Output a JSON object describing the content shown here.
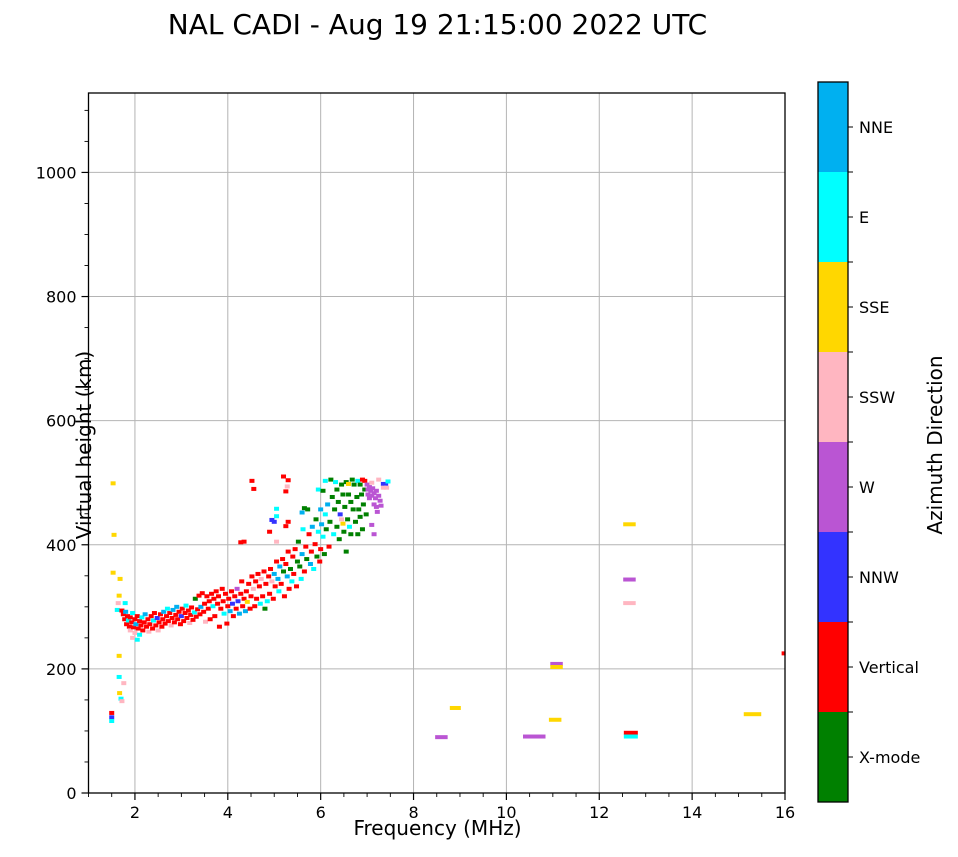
{
  "title": "NAL CADI - Aug 19 21:15:00 2022 UTC",
  "chart_data": {
    "type": "scatter",
    "title": "NAL CADI - Aug 19 21:15:00 2022 UTC",
    "xlabel": "Frequency (MHz)",
    "ylabel": "Virtual height (km)",
    "xlim": [
      1,
      16
    ],
    "ylim": [
      0,
      1128
    ],
    "x_major_ticks": [
      2,
      4,
      6,
      8,
      10,
      12,
      14,
      16
    ],
    "x_minor_step": 0.5,
    "y_major_ticks": [
      0,
      200,
      400,
      600,
      800,
      1000
    ],
    "y_minor_step": 50,
    "grid": true,
    "grid_color": "#b4b4b4",
    "axis_color": "#000000",
    "legend": {
      "title": "Azimuth Direction",
      "style": "colorbar-right",
      "categories": [
        {
          "label": "NNE",
          "color": "#00B0F0"
        },
        {
          "label": "E",
          "color": "#00FFFF"
        },
        {
          "label": "SSE",
          "color": "#FFD700"
        },
        {
          "label": "SSW",
          "color": "#FFB6C1"
        },
        {
          "label": "W",
          "color": "#BA55D3"
        },
        {
          "label": "NNW",
          "color": "#3333FF"
        },
        {
          "label": "Vertical",
          "color": "#FF0000"
        },
        {
          "label": "X-mode",
          "color": "#008000"
        }
      ]
    },
    "points_format": "[frequency_MHz, virtual_height_km, azimuth_direction, optional_width_scale]",
    "points": [
      [
        1.53,
        499,
        "SSE"
      ],
      [
        1.55,
        416,
        "SSE"
      ],
      [
        1.53,
        355,
        "SSE"
      ],
      [
        1.68,
        345,
        "SSE"
      ],
      [
        1.66,
        318,
        "SSE"
      ],
      [
        1.64,
        306,
        "SSW"
      ],
      [
        1.79,
        306,
        "E"
      ],
      [
        1.62,
        295,
        "E"
      ],
      [
        1.66,
        221,
        "SSE"
      ],
      [
        1.66,
        187,
        "E"
      ],
      [
        1.76,
        177,
        "SSW"
      ],
      [
        1.67,
        161,
        "SSE"
      ],
      [
        1.7,
        152,
        "E"
      ],
      [
        1.72,
        148,
        "SSW"
      ],
      [
        1.5,
        129,
        "Vertical"
      ],
      [
        1.5,
        122,
        "NNW"
      ],
      [
        1.5,
        116,
        "E"
      ],
      [
        1.72,
        294,
        "Vertical"
      ],
      [
        1.75,
        288,
        "Vertical"
      ],
      [
        1.78,
        280,
        "Vertical"
      ],
      [
        1.8,
        292,
        "NNE"
      ],
      [
        1.82,
        272,
        "Vertical"
      ],
      [
        1.84,
        285,
        "Vertical"
      ],
      [
        1.86,
        278,
        "E"
      ],
      [
        1.88,
        268,
        "Vertical"
      ],
      [
        1.9,
        283,
        "Vertical"
      ],
      [
        1.9,
        262,
        "SSW"
      ],
      [
        1.93,
        275,
        "Vertical"
      ],
      [
        1.95,
        290,
        "E"
      ],
      [
        1.95,
        250,
        "SSW"
      ],
      [
        1.97,
        267,
        "Vertical"
      ],
      [
        2.0,
        280,
        "Vertical"
      ],
      [
        2.0,
        258,
        "SSW"
      ],
      [
        2.02,
        272,
        "NNE"
      ],
      [
        2.05,
        285,
        "Vertical"
      ],
      [
        2.05,
        247,
        "E"
      ],
      [
        2.07,
        265,
        "Vertical"
      ],
      [
        2.1,
        277,
        "Vertical"
      ],
      [
        2.1,
        255,
        "E"
      ],
      [
        2.13,
        270,
        "Vertical"
      ],
      [
        2.15,
        283,
        "E"
      ],
      [
        2.17,
        262,
        "Vertical"
      ],
      [
        2.2,
        275,
        "Vertical"
      ],
      [
        2.22,
        288,
        "NNE"
      ],
      [
        2.25,
        268,
        "Vertical"
      ],
      [
        2.28,
        280,
        "Vertical"
      ],
      [
        2.3,
        260,
        "SSW"
      ],
      [
        2.32,
        272,
        "Vertical"
      ],
      [
        2.35,
        285,
        "Vertical"
      ],
      [
        2.38,
        265,
        "Vertical"
      ],
      [
        2.4,
        278,
        "E"
      ],
      [
        2.42,
        290,
        "Vertical"
      ],
      [
        2.45,
        270,
        "Vertical"
      ],
      [
        2.48,
        282,
        "NNW"
      ],
      [
        2.5,
        262,
        "SSW"
      ],
      [
        2.52,
        275,
        "Vertical"
      ],
      [
        2.55,
        288,
        "Vertical"
      ],
      [
        2.58,
        268,
        "Vertical"
      ],
      [
        2.6,
        280,
        "Vertical"
      ],
      [
        2.62,
        292,
        "NNE"
      ],
      [
        2.65,
        273,
        "Vertical"
      ],
      [
        2.68,
        285,
        "Vertical"
      ],
      [
        2.7,
        297,
        "E"
      ],
      [
        2.72,
        277,
        "Vertical"
      ],
      [
        2.75,
        290,
        "Vertical"
      ],
      [
        2.78,
        270,
        "SSW"
      ],
      [
        2.8,
        282,
        "Vertical"
      ],
      [
        2.82,
        295,
        "NNE"
      ],
      [
        2.85,
        275,
        "Vertical"
      ],
      [
        2.88,
        287,
        "Vertical"
      ],
      [
        2.9,
        300,
        "NNE"
      ],
      [
        2.92,
        280,
        "Vertical"
      ],
      [
        2.95,
        292,
        "Vertical"
      ],
      [
        2.98,
        272,
        "Vertical"
      ],
      [
        3.0,
        285,
        "NNW"
      ],
      [
        3.02,
        297,
        "Vertical"
      ],
      [
        3.05,
        277,
        "Vertical"
      ],
      [
        3.08,
        290,
        "Vertical"
      ],
      [
        3.1,
        302,
        "E"
      ],
      [
        3.12,
        282,
        "Vertical"
      ],
      [
        3.15,
        294,
        "Vertical"
      ],
      [
        3.18,
        274,
        "SSW"
      ],
      [
        3.2,
        287,
        "Vertical"
      ],
      [
        3.22,
        299,
        "Vertical"
      ],
      [
        3.25,
        279,
        "Vertical"
      ],
      [
        3.28,
        291,
        "E"
      ],
      [
        3.3,
        313,
        "X-mode"
      ],
      [
        3.32,
        284,
        "Vertical"
      ],
      [
        3.35,
        296,
        "Vertical"
      ],
      [
        3.38,
        318,
        "Vertical"
      ],
      [
        3.4,
        288,
        "Vertical"
      ],
      [
        3.42,
        300,
        "NNE"
      ],
      [
        3.45,
        322,
        "Vertical"
      ],
      [
        3.48,
        292,
        "Vertical"
      ],
      [
        3.5,
        305,
        "Vertical"
      ],
      [
        3.52,
        276,
        "SSW"
      ],
      [
        3.55,
        317,
        "Vertical"
      ],
      [
        3.58,
        297,
        "Vertical"
      ],
      [
        3.6,
        309,
        "Vertical"
      ],
      [
        3.62,
        280,
        "Vertical"
      ],
      [
        3.65,
        321,
        "Vertical"
      ],
      [
        3.68,
        301,
        "E"
      ],
      [
        3.7,
        313,
        "Vertical"
      ],
      [
        3.72,
        285,
        "Vertical"
      ],
      [
        3.75,
        325,
        "Vertical"
      ],
      [
        3.78,
        305,
        "Vertical"
      ],
      [
        3.8,
        317,
        "Vertical"
      ],
      [
        3.82,
        268,
        "Vertical"
      ],
      [
        3.85,
        297,
        "Vertical"
      ],
      [
        3.88,
        329,
        "Vertical"
      ],
      [
        3.9,
        309,
        "Vertical"
      ],
      [
        3.92,
        289,
        "E"
      ],
      [
        3.95,
        321,
        "Vertical"
      ],
      [
        3.98,
        273,
        "Vertical"
      ],
      [
        4.0,
        301,
        "Vertical"
      ],
      [
        4.02,
        313,
        "Vertical"
      ],
      [
        4.05,
        293,
        "NNE"
      ],
      [
        4.08,
        325,
        "Vertical"
      ],
      [
        4.1,
        305,
        "NNW"
      ],
      [
        4.12,
        285,
        "Vertical"
      ],
      [
        4.15,
        317,
        "Vertical"
      ],
      [
        4.18,
        297,
        "Vertical"
      ],
      [
        4.2,
        329,
        "W"
      ],
      [
        4.22,
        309,
        "NNW"
      ],
      [
        4.25,
        289,
        "NNE"
      ],
      [
        4.28,
        321,
        "Vertical"
      ],
      [
        4.3,
        341,
        "Vertical"
      ],
      [
        4.32,
        301,
        "Vertical"
      ],
      [
        4.35,
        313,
        "Vertical"
      ],
      [
        4.38,
        293,
        "NNE"
      ],
      [
        4.4,
        325,
        "Vertical"
      ],
      [
        4.42,
        308,
        "SSE"
      ],
      [
        4.45,
        337,
        "Vertical"
      ],
      [
        4.48,
        297,
        "Vertical"
      ],
      [
        4.5,
        317,
        "Vertical"
      ],
      [
        4.52,
        349,
        "Vertical"
      ],
      [
        4.55,
        329,
        "SSW"
      ],
      [
        4.58,
        301,
        "Vertical"
      ],
      [
        4.6,
        341,
        "Vertical"
      ],
      [
        4.62,
        313,
        "Vertical"
      ],
      [
        4.65,
        353,
        "Vertical"
      ],
      [
        4.68,
        333,
        "Vertical"
      ],
      [
        4.7,
        305,
        "E"
      ],
      [
        4.72,
        345,
        "SSW"
      ],
      [
        4.75,
        317,
        "Vertical"
      ],
      [
        4.78,
        357,
        "Vertical"
      ],
      [
        4.8,
        297,
        "X-mode"
      ],
      [
        4.82,
        337,
        "Vertical"
      ],
      [
        4.85,
        309,
        "E"
      ],
      [
        4.88,
        349,
        "Vertical"
      ],
      [
        4.9,
        321,
        "Vertical"
      ],
      [
        4.92,
        361,
        "Vertical"
      ],
      [
        4.95,
        341,
        "SSW"
      ],
      [
        4.98,
        313,
        "Vertical"
      ],
      [
        5.0,
        353,
        "NNE"
      ],
      [
        5.02,
        333,
        "Vertical"
      ],
      [
        5.05,
        373,
        "Vertical"
      ],
      [
        5.08,
        345,
        "NNE"
      ],
      [
        5.1,
        325,
        "E"
      ],
      [
        5.12,
        365,
        "NNE"
      ],
      [
        5.15,
        337,
        "Vertical"
      ],
      [
        5.18,
        377,
        "Vertical"
      ],
      [
        5.2,
        357,
        "X-mode"
      ],
      [
        5.22,
        317,
        "Vertical"
      ],
      [
        5.25,
        369,
        "Vertical"
      ],
      [
        5.28,
        349,
        "NNE"
      ],
      [
        5.3,
        389,
        "Vertical"
      ],
      [
        5.32,
        329,
        "Vertical"
      ],
      [
        5.35,
        361,
        "X-mode"
      ],
      [
        5.38,
        341,
        "E"
      ],
      [
        5.4,
        381,
        "Vertical"
      ],
      [
        5.42,
        353,
        "Vertical"
      ],
      [
        5.45,
        393,
        "Vertical"
      ],
      [
        5.48,
        333,
        "Vertical"
      ],
      [
        5.5,
        373,
        "X-mode"
      ],
      [
        5.52,
        405,
        "X-mode"
      ],
      [
        5.55,
        365,
        "X-mode"
      ],
      [
        5.58,
        345,
        "E"
      ],
      [
        5.6,
        385,
        "NNE"
      ],
      [
        5.62,
        425,
        "E"
      ],
      [
        5.65,
        357,
        "Vertical"
      ],
      [
        5.68,
        397,
        "Vertical"
      ],
      [
        5.7,
        377,
        "X-mode"
      ],
      [
        5.72,
        457,
        "X-mode"
      ],
      [
        5.75,
        417,
        "Vertical"
      ],
      [
        5.78,
        369,
        "NNE"
      ],
      [
        5.8,
        389,
        "Vertical"
      ],
      [
        5.82,
        429,
        "NNE"
      ],
      [
        5.85,
        361,
        "E"
      ],
      [
        5.88,
        401,
        "Vertical"
      ],
      [
        5.9,
        441,
        "X-mode"
      ],
      [
        5.92,
        381,
        "X-mode"
      ],
      [
        5.95,
        489,
        "E"
      ],
      [
        5.95,
        421,
        "E"
      ],
      [
        5.98,
        373,
        "Vertical"
      ],
      [
        6.0,
        457,
        "NNE"
      ],
      [
        6.0,
        393,
        "Vertical"
      ],
      [
        6.02,
        433,
        "NNE"
      ],
      [
        6.05,
        487,
        "X-mode"
      ],
      [
        6.05,
        413,
        "E"
      ],
      [
        6.08,
        385,
        "X-mode"
      ],
      [
        6.1,
        503,
        "E"
      ],
      [
        6.1,
        449,
        "E"
      ],
      [
        6.12,
        425,
        "X-mode"
      ],
      [
        6.15,
        465,
        "NNE"
      ],
      [
        6.18,
        397,
        "Vertical"
      ],
      [
        6.2,
        437,
        "X-mode"
      ],
      [
        6.22,
        505,
        "X-mode"
      ],
      [
        6.25,
        477,
        "X-mode"
      ],
      [
        6.28,
        417,
        "E"
      ],
      [
        6.3,
        457,
        "X-mode"
      ],
      [
        6.32,
        501,
        "E"
      ],
      [
        6.35,
        489,
        "X-mode"
      ],
      [
        6.35,
        429,
        "X-mode"
      ],
      [
        6.38,
        469,
        "X-mode"
      ],
      [
        6.4,
        409,
        "X-mode"
      ],
      [
        6.42,
        449,
        "NNW"
      ],
      [
        6.45,
        497,
        "X-mode"
      ],
      [
        6.45,
        441,
        "SSW"
      ],
      [
        6.48,
        481,
        "X-mode"
      ],
      [
        6.48,
        434,
        "SSE"
      ],
      [
        6.5,
        421,
        "X-mode"
      ],
      [
        6.52,
        461,
        "X-mode"
      ],
      [
        6.55,
        501,
        "X-mode"
      ],
      [
        6.55,
        389,
        "X-mode"
      ],
      [
        6.58,
        441,
        "X-mode"
      ],
      [
        6.6,
        498,
        "SSE"
      ],
      [
        6.6,
        481,
        "X-mode"
      ],
      [
        6.62,
        429,
        "E"
      ],
      [
        6.65,
        469,
        "X-mode"
      ],
      [
        6.65,
        417,
        "X-mode"
      ],
      [
        6.68,
        505,
        "X-mode"
      ],
      [
        6.7,
        457,
        "X-mode"
      ],
      [
        6.72,
        497,
        "X-mode"
      ],
      [
        6.75,
        437,
        "X-mode"
      ],
      [
        6.78,
        477,
        "X-mode"
      ],
      [
        6.8,
        503,
        "E"
      ],
      [
        6.8,
        417,
        "X-mode"
      ],
      [
        6.82,
        457,
        "X-mode"
      ],
      [
        6.85,
        497,
        "X-mode"
      ],
      [
        6.85,
        445,
        "X-mode"
      ],
      [
        6.88,
        481,
        "X-mode"
      ],
      [
        6.9,
        505,
        "Vertical"
      ],
      [
        6.9,
        425,
        "X-mode"
      ],
      [
        6.92,
        465,
        "X-mode"
      ],
      [
        6.95,
        503,
        "Vertical"
      ],
      [
        6.95,
        489,
        "X-mode"
      ],
      [
        6.98,
        449,
        "X-mode"
      ],
      [
        7.0,
        497,
        "W"
      ],
      [
        7.02,
        489,
        "W"
      ],
      [
        7.02,
        481,
        "W"
      ],
      [
        7.05,
        493,
        "W"
      ],
      [
        7.05,
        475,
        "W"
      ],
      [
        7.08,
        487,
        "W"
      ],
      [
        7.1,
        500,
        "SSW"
      ],
      [
        7.1,
        479,
        "W"
      ],
      [
        7.12,
        491,
        "W"
      ],
      [
        7.15,
        483,
        "W"
      ],
      [
        7.15,
        465,
        "W"
      ],
      [
        7.18,
        475,
        "W"
      ],
      [
        7.2,
        487,
        "W"
      ],
      [
        7.2,
        461,
        "W"
      ],
      [
        7.22,
        453,
        "W"
      ],
      [
        7.25,
        479,
        "W"
      ],
      [
        7.1,
        432,
        "W"
      ],
      [
        7.15,
        417,
        "W"
      ],
      [
        7.28,
        471,
        "W"
      ],
      [
        7.3,
        463,
        "W"
      ],
      [
        7.35,
        498,
        "NNW"
      ],
      [
        7.4,
        498,
        "NNW"
      ],
      [
        7.35,
        492,
        "SSW"
      ],
      [
        7.42,
        492,
        "SSW"
      ],
      [
        7.45,
        502,
        "E"
      ],
      [
        7.25,
        505,
        "SSW"
      ],
      [
        5.2,
        510,
        "Vertical"
      ],
      [
        5.3,
        504,
        "Vertical"
      ],
      [
        5.28,
        494,
        "SSW"
      ],
      [
        5.25,
        486,
        "Vertical"
      ],
      [
        4.52,
        503,
        "Vertical"
      ],
      [
        4.56,
        490,
        "Vertical"
      ],
      [
        5.05,
        458,
        "E"
      ],
      [
        5.05,
        446,
        "E"
      ],
      [
        4.95,
        440,
        "NNW"
      ],
      [
        5.0,
        437,
        "NNW"
      ],
      [
        5.3,
        437,
        "Vertical"
      ],
      [
        5.25,
        430,
        "Vertical"
      ],
      [
        4.9,
        421,
        "Vertical"
      ],
      [
        4.35,
        405,
        "Vertical"
      ],
      [
        4.28,
        404,
        "Vertical"
      ],
      [
        5.05,
        405,
        "SSW"
      ],
      [
        5.6,
        452,
        "NNE"
      ],
      [
        5.65,
        459,
        "X-mode"
      ],
      [
        8.6,
        90,
        "W",
        2.5
      ],
      [
        8.9,
        137,
        "SSE",
        2.2
      ],
      [
        10.6,
        91,
        "W",
        4.5
      ],
      [
        11.05,
        118,
        "SSE",
        2.5
      ],
      [
        11.08,
        208,
        "W",
        2.5
      ],
      [
        11.08,
        203,
        "SSE",
        2.5
      ],
      [
        12.65,
        433,
        "SSE",
        2.5
      ],
      [
        12.65,
        344,
        "W",
        2.5
      ],
      [
        12.65,
        306,
        "SSW",
        2.5
      ],
      [
        12.68,
        97,
        "Vertical",
        2.8
      ],
      [
        12.68,
        91,
        "E",
        2.8
      ],
      [
        15.3,
        127,
        "SSE",
        3.5
      ],
      [
        15.97,
        225,
        "Vertical",
        0.8
      ]
    ]
  }
}
